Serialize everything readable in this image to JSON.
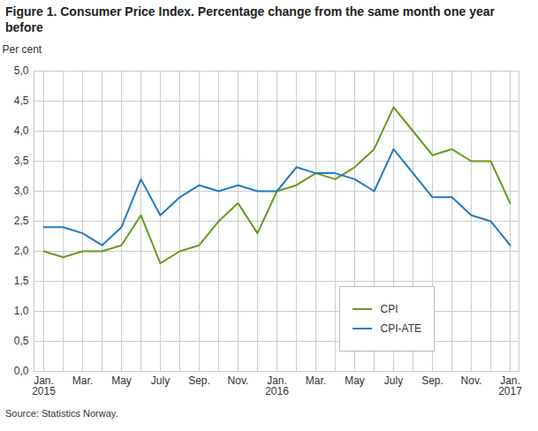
{
  "chart_data": {
    "type": "line",
    "title": "Figure 1. Consumer Price Index. Percentage change from the same month one year before",
    "y_label": "Per cent",
    "caption": "Source: Statistics Norway.",
    "categories": [
      "Jan.\n2015",
      null,
      "Mar.",
      null,
      "May",
      null,
      "July",
      null,
      "Sep.",
      null,
      "Nov.",
      null,
      "Jan.\n2016",
      null,
      "Mar.",
      null,
      "May",
      null,
      "July",
      null,
      "Sep.",
      null,
      "Nov.",
      null,
      "Jan.\n2017"
    ],
    "series": [
      {
        "name": "CPI",
        "color": "#669a21",
        "values": [
          2.0,
          1.9,
          2.0,
          2.0,
          2.1,
          2.6,
          1.8,
          2.0,
          2.1,
          2.5,
          2.8,
          2.3,
          3.0,
          3.1,
          3.3,
          3.2,
          3.4,
          3.7,
          4.4,
          4.0,
          3.6,
          3.7,
          3.5,
          3.5,
          2.8
        ]
      },
      {
        "name": "CPI-ATE",
        "color": "#1f7bc4",
        "values": [
          2.4,
          2.4,
          2.3,
          2.1,
          2.4,
          3.2,
          2.6,
          2.9,
          3.1,
          3.0,
          3.1,
          3.0,
          3.0,
          3.4,
          3.3,
          3.3,
          3.2,
          3.0,
          3.7,
          3.3,
          2.9,
          2.9,
          2.6,
          2.5,
          2.1
        ]
      }
    ],
    "ylim": [
      0,
      5
    ],
    "yticks": [
      {
        "value": 0,
        "label": "0,0"
      },
      {
        "value": 0.5,
        "label": "0,5"
      },
      {
        "value": 1,
        "label": "1,0"
      },
      {
        "value": 1.5,
        "label": "1,5"
      },
      {
        "value": 2,
        "label": "2,0"
      },
      {
        "value": 2.5,
        "label": "2,5"
      },
      {
        "value": 3,
        "label": "3,0"
      },
      {
        "value": 3.5,
        "label": "3,5"
      },
      {
        "value": 4,
        "label": "4,0"
      },
      {
        "value": 4.5,
        "label": "4,5"
      },
      {
        "value": 5,
        "label": "5,0"
      }
    ],
    "grid": true,
    "legend": "lower right"
  }
}
